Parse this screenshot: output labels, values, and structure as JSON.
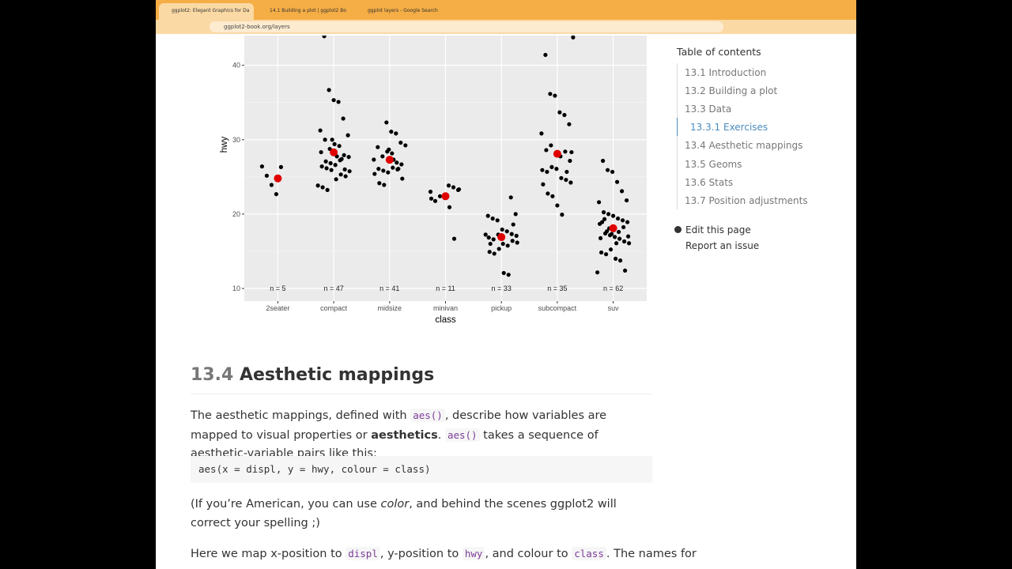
{
  "browser": {
    "tabs": [
      "ggplot2: Elegant Graphics for Da",
      "14.1 Building a plot | ggplot2 Bo",
      "ggplot layers - Google Search"
    ],
    "url": "ggplot2-book.org/layers"
  },
  "chart_data": {
    "type": "scatter",
    "x_label": "class",
    "y_label": "hwy",
    "categories": [
      "2seater",
      "compact",
      "midsize",
      "minivan",
      "pickup",
      "subcompact",
      "suv"
    ],
    "count_labels": [
      "n = 5",
      "n = 47",
      "n = 41",
      "n = 11",
      "n = 33",
      "n = 35",
      "n = 62"
    ],
    "ylim": [
      8.3,
      44
    ],
    "yticks": [
      10,
      20,
      30,
      40
    ],
    "grid": true,
    "points": {
      "color": "#000000",
      "values": [
        [
          26,
          25,
          24,
          23,
          26
        ],
        [
          44,
          37,
          35,
          35,
          33,
          31,
          31,
          30,
          29,
          29,
          29,
          28,
          28,
          28,
          27,
          27,
          27,
          27,
          26,
          26,
          26,
          26,
          26,
          25,
          25,
          25,
          24,
          24,
          23,
          30,
          28,
          27
        ],
        [
          32,
          31,
          31,
          30,
          29,
          29,
          28,
          28,
          28,
          27,
          27,
          27,
          26,
          26,
          26,
          26,
          26,
          25,
          25,
          24,
          24,
          29,
          27,
          26
        ],
        [
          24,
          24,
          23,
          23,
          22,
          22,
          22,
          21,
          17,
          23,
          22
        ],
        [
          22,
          20,
          20,
          19,
          19,
          18,
          18,
          17,
          17,
          17,
          17,
          17,
          16,
          16,
          16,
          16,
          15,
          15,
          15,
          12,
          12,
          19,
          17,
          16
        ],
        [
          44,
          41,
          36,
          36,
          34,
          33,
          32,
          31,
          29,
          29,
          28,
          28,
          28,
          27,
          26,
          26,
          26,
          26,
          25,
          25,
          24,
          24,
          23,
          22,
          21,
          20,
          26,
          28
        ],
        [
          27,
          26,
          26,
          24,
          23,
          22,
          22,
          20,
          20,
          20,
          19,
          19,
          19,
          19,
          19,
          18,
          18,
          18,
          18,
          17,
          17,
          17,
          17,
          17,
          17,
          16,
          16,
          15,
          15,
          15,
          14,
          14,
          12,
          12,
          19,
          18,
          17,
          16
        ]
      ]
    },
    "means": {
      "color": "#e00000",
      "values": [
        24.8,
        28.3,
        27.3,
        22.4,
        16.9,
        28.1,
        18.1
      ]
    }
  },
  "toc": {
    "title": "Table of contents",
    "items": [
      "13.1 Introduction",
      "13.2 Building a plot",
      "13.3 Data",
      "13.3.1 Exercises",
      "13.4 Aesthetic mappings",
      "13.5 Geoms",
      "13.6 Stats",
      "13.7 Position adjustments"
    ],
    "active": 3,
    "links": [
      "Edit this page",
      "Report an issue"
    ]
  },
  "section": {
    "number": "13.4",
    "title": "Aesthetic mappings"
  },
  "paragraphs": [
    [
      {
        "text": "The aesthetic mappings, defined with "
      },
      {
        "text": "aes()",
        "style": "code"
      },
      {
        "text": ", describe how variables are mapped to visual properties or "
      },
      {
        "text": "aesthetics",
        "style": "bold"
      },
      {
        "text": ". "
      },
      {
        "text": "aes()",
        "style": "code"
      },
      {
        "text": " takes a sequence of aesthetic-variable pairs like this:"
      }
    ],
    [
      {
        "text": "(If you’re American, you can use "
      },
      {
        "text": "color",
        "style": "italic"
      },
      {
        "text": ", and behind the scenes ggplot2 will correct your spelling ;)"
      }
    ],
    [
      {
        "text": "Here we map x-position to "
      },
      {
        "text": "displ",
        "style": "code"
      },
      {
        "text": ", y-position to "
      },
      {
        "text": "hwy",
        "style": "code"
      },
      {
        "text": ", and colour to "
      },
      {
        "text": "class",
        "style": "code"
      },
      {
        "text": ". The names for"
      }
    ]
  ],
  "code": "aes(x = displ, y = hwy, colour = class)"
}
